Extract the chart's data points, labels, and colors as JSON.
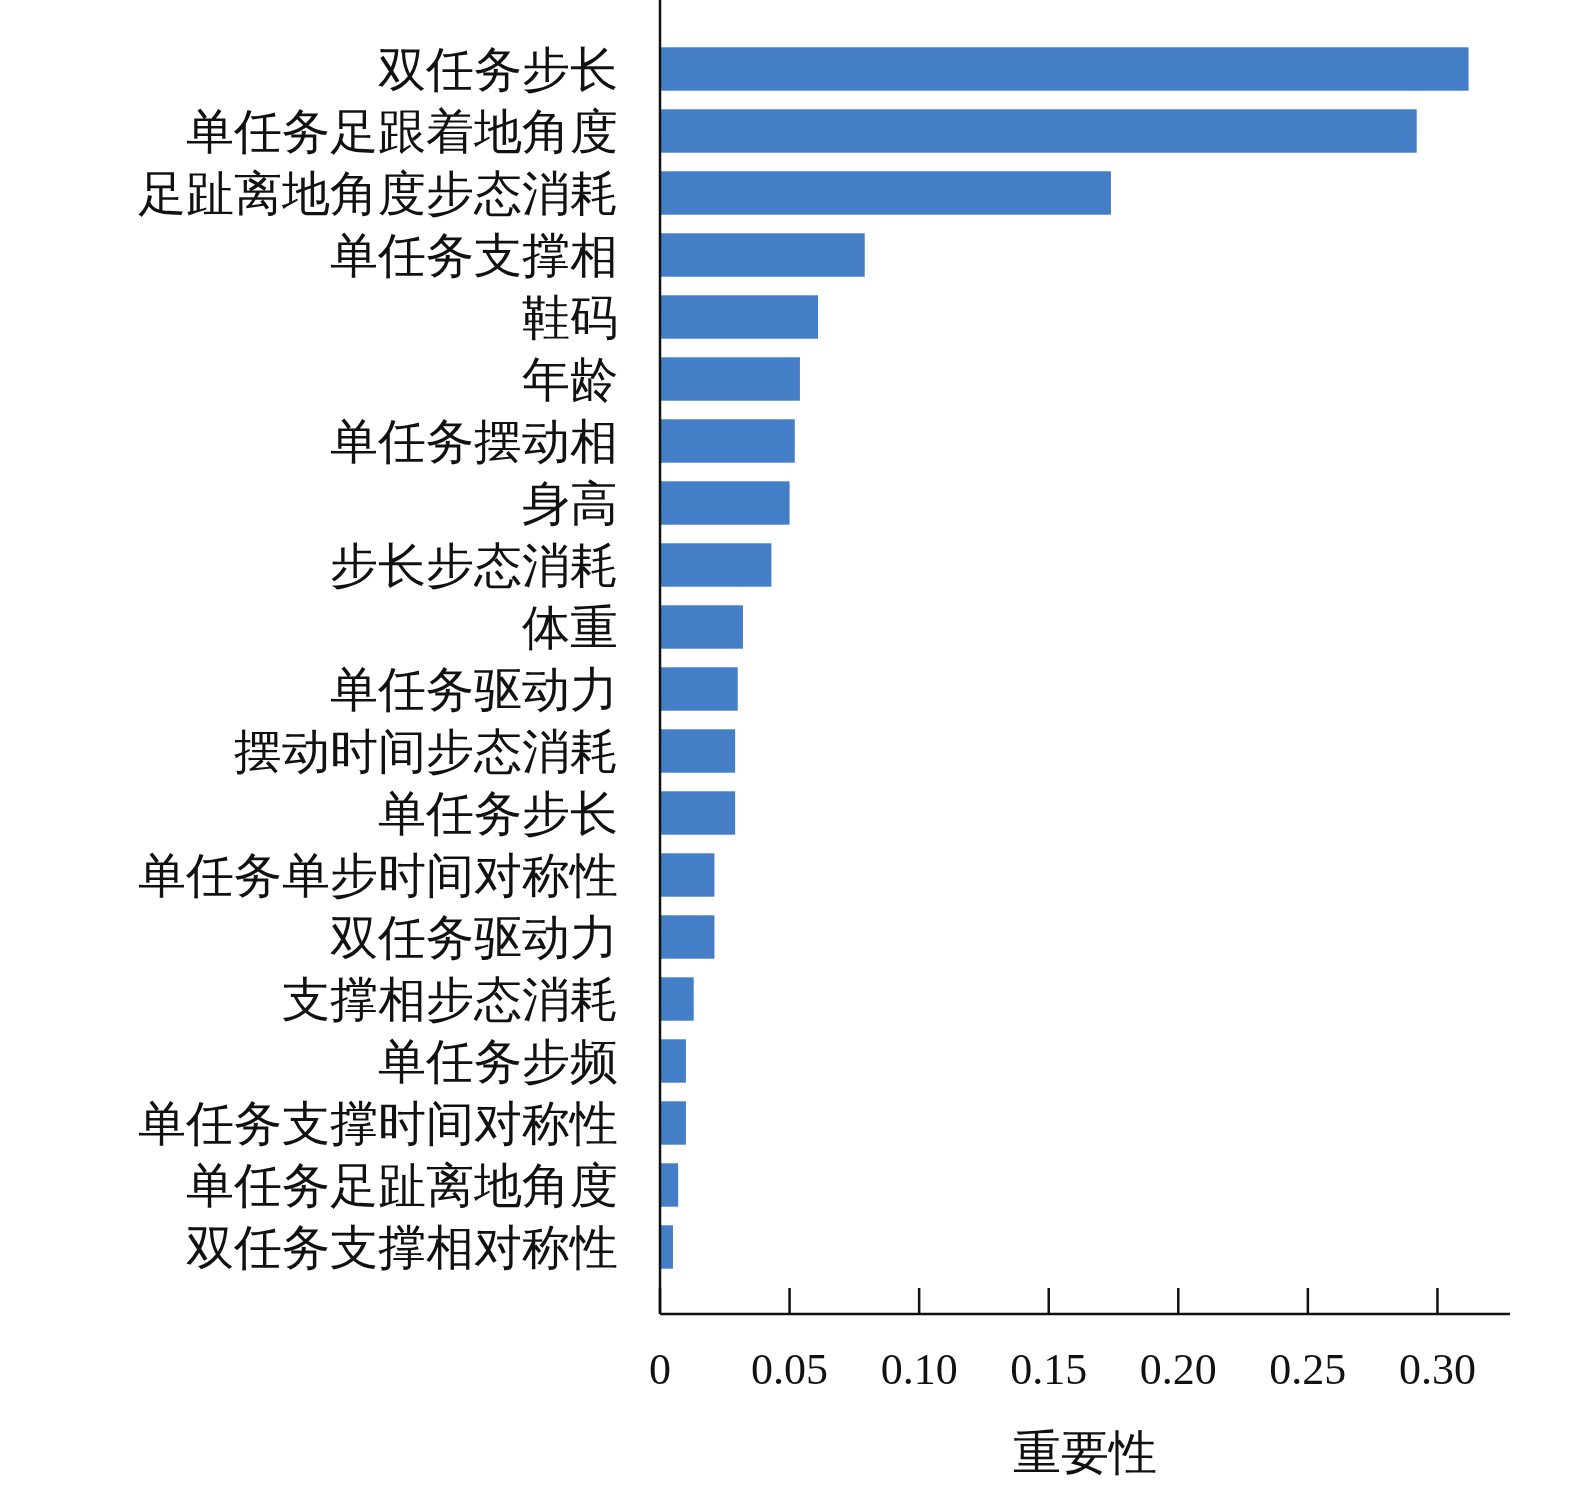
{
  "chart_data": {
    "type": "bar",
    "orientation": "horizontal",
    "xlabel": "重要性",
    "categories": [
      "双任务步长",
      "单任务足跟着地角度",
      "足趾离地角度步态消耗",
      "单任务支撑相",
      "鞋码",
      "年龄",
      "单任务摆动相",
      "身高",
      "步长步态消耗",
      "体重",
      "单任务驱动力",
      "摆动时间步态消耗",
      "单任务步长",
      "单任务单步时间对称性",
      "双任务驱动力",
      "支撑相步态消耗",
      "单任务步频",
      "单任务支撑时间对称性",
      "单任务足趾离地角度",
      "双任务支撑相对称性"
    ],
    "values": [
      0.312,
      0.292,
      0.174,
      0.079,
      0.061,
      0.054,
      0.052,
      0.05,
      0.043,
      0.032,
      0.03,
      0.029,
      0.029,
      0.021,
      0.021,
      0.013,
      0.01,
      0.01,
      0.007,
      0.005
    ],
    "color": "#447ec6",
    "xlim": [
      0,
      0.328
    ],
    "xticks": [
      0,
      0.05,
      {
        "value": 0.1,
        "label": "0.10"
      },
      0.15,
      {
        "value": 0.2,
        "label": "0.20"
      },
      0.25,
      {
        "value": 0.3,
        "label": "0.30"
      }
    ],
    "grid": false
  }
}
